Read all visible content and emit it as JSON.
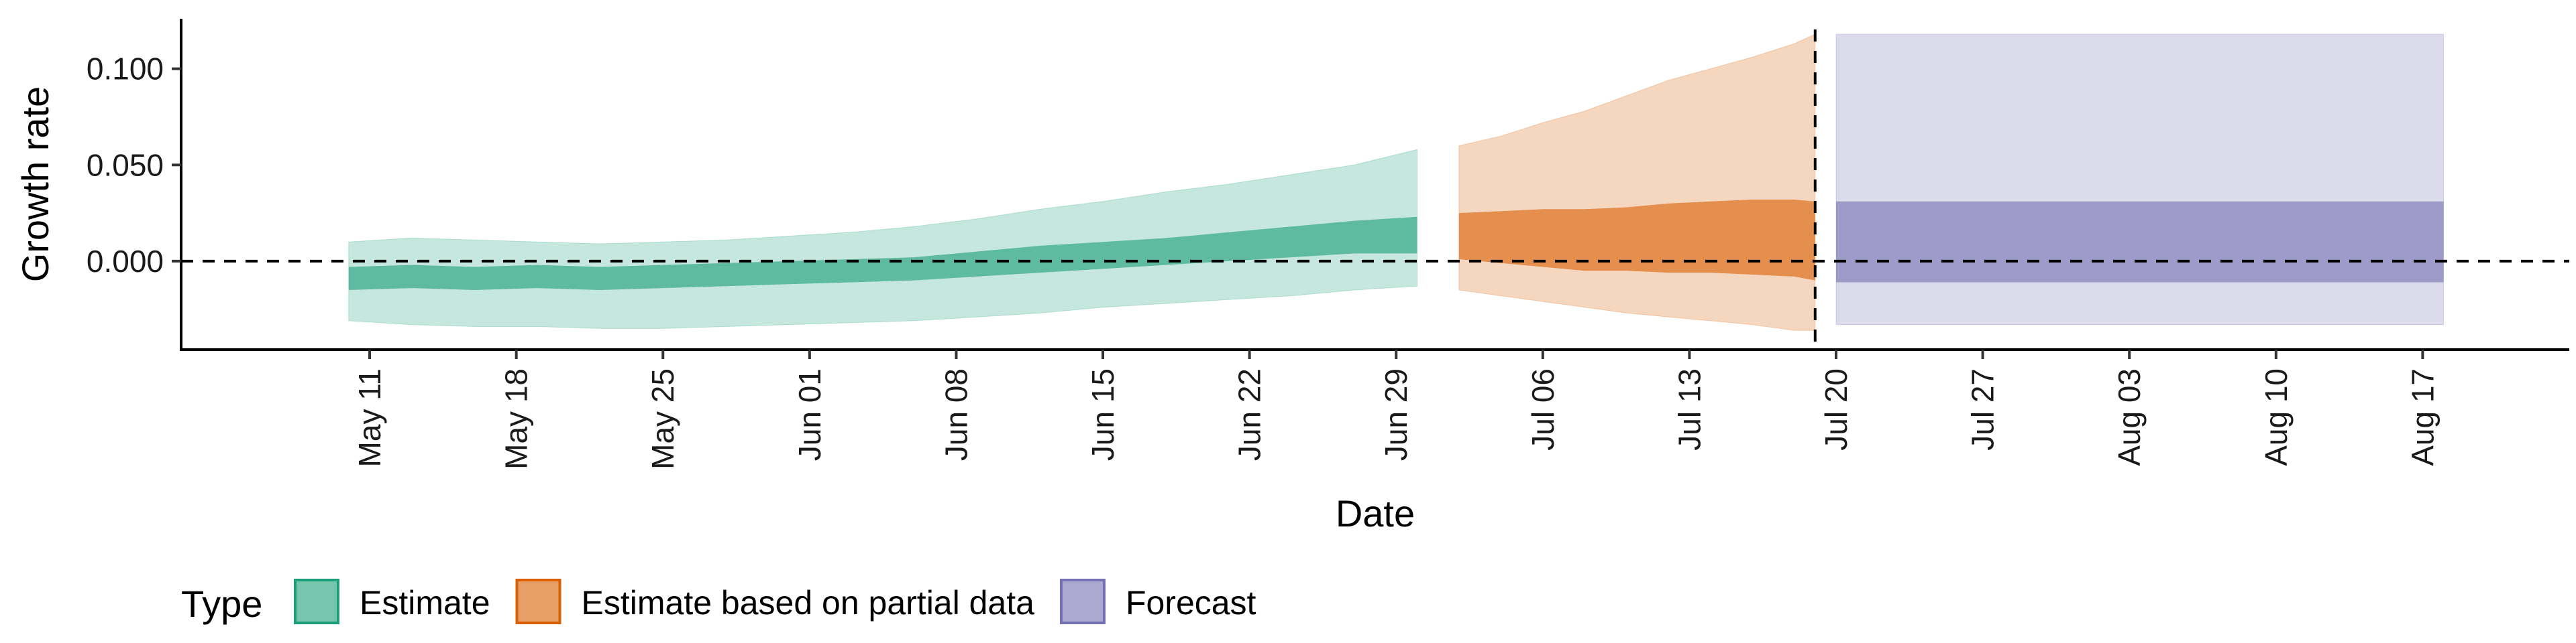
{
  "chart_data": {
    "type": "area",
    "xlabel": "Date",
    "ylabel": "Growth rate",
    "y_ticks": [
      "0.000",
      "0.050",
      "0.100"
    ],
    "ylim": [
      -0.046,
      0.126
    ],
    "xlim": [
      "2020-05-02",
      "2020-08-24"
    ],
    "x_ticks": [
      {
        "date": "2020-05-11",
        "label": "May 11"
      },
      {
        "date": "2020-05-18",
        "label": "May 18"
      },
      {
        "date": "2020-05-25",
        "label": "May 25"
      },
      {
        "date": "2020-06-01",
        "label": "Jun 01"
      },
      {
        "date": "2020-06-08",
        "label": "Jun 08"
      },
      {
        "date": "2020-06-15",
        "label": "Jun 15"
      },
      {
        "date": "2020-06-22",
        "label": "Jun 22"
      },
      {
        "date": "2020-06-29",
        "label": "Jun 29"
      },
      {
        "date": "2020-07-06",
        "label": "Jul 06"
      },
      {
        "date": "2020-07-13",
        "label": "Jul 13"
      },
      {
        "date": "2020-07-20",
        "label": "Jul 20"
      },
      {
        "date": "2020-07-27",
        "label": "Jul 27"
      },
      {
        "date": "2020-08-03",
        "label": "Aug 03"
      },
      {
        "date": "2020-08-10",
        "label": "Aug 10"
      },
      {
        "date": "2020-08-17",
        "label": "Aug 17"
      }
    ],
    "reference_lines": [
      {
        "orientation": "horizontal",
        "y": 0,
        "style": "dashed"
      },
      {
        "orientation": "vertical",
        "x": "2020-07-19",
        "style": "dashed"
      }
    ],
    "grid": false,
    "legend": {
      "title": "Type",
      "position": "bottom-left"
    },
    "series": [
      {
        "name": "Estimate",
        "color": "#1b9e77",
        "x": [
          "2020-05-10",
          "2020-05-13",
          "2020-05-16",
          "2020-05-19",
          "2020-05-22",
          "2020-05-25",
          "2020-05-28",
          "2020-05-31",
          "2020-06-03",
          "2020-06-06",
          "2020-06-09",
          "2020-06-12",
          "2020-06-15",
          "2020-06-18",
          "2020-06-21",
          "2020-06-24",
          "2020-06-27",
          "2020-06-30"
        ],
        "inner_lower": [
          -0.015,
          -0.014,
          -0.015,
          -0.014,
          -0.015,
          -0.014,
          -0.013,
          -0.012,
          -0.011,
          -0.01,
          -0.008,
          -0.006,
          -0.004,
          -0.002,
          0.0,
          0.002,
          0.004,
          0.004
        ],
        "inner_upper": [
          -0.003,
          -0.002,
          -0.003,
          -0.002,
          -0.003,
          -0.002,
          -0.001,
          0.0,
          0.001,
          0.002,
          0.005,
          0.008,
          0.01,
          0.012,
          0.015,
          0.018,
          0.021,
          0.023
        ],
        "outer_lower": [
          -0.031,
          -0.033,
          -0.034,
          -0.034,
          -0.035,
          -0.035,
          -0.034,
          -0.033,
          -0.032,
          -0.031,
          -0.029,
          -0.027,
          -0.024,
          -0.022,
          -0.02,
          -0.018,
          -0.015,
          -0.013
        ],
        "outer_upper": [
          0.01,
          0.012,
          0.011,
          0.01,
          0.009,
          0.01,
          0.011,
          0.013,
          0.015,
          0.018,
          0.022,
          0.027,
          0.031,
          0.036,
          0.04,
          0.045,
          0.05,
          0.058
        ]
      },
      {
        "name": "Estimate based on partial data",
        "color": "#d95f02",
        "x": [
          "2020-07-02",
          "2020-07-04",
          "2020-07-06",
          "2020-07-08",
          "2020-07-10",
          "2020-07-12",
          "2020-07-14",
          "2020-07-16",
          "2020-07-18",
          "2020-07-19"
        ],
        "inner_lower": [
          0.001,
          -0.001,
          -0.003,
          -0.005,
          -0.005,
          -0.006,
          -0.006,
          -0.007,
          -0.008,
          -0.01
        ],
        "inner_upper": [
          0.025,
          0.026,
          0.027,
          0.027,
          0.028,
          0.03,
          0.031,
          0.032,
          0.032,
          0.031
        ],
        "outer_lower": [
          -0.015,
          -0.018,
          -0.021,
          -0.024,
          -0.027,
          -0.029,
          -0.031,
          -0.033,
          -0.036,
          -0.036
        ],
        "outer_upper": [
          0.06,
          0.065,
          0.072,
          0.078,
          0.086,
          0.094,
          0.1,
          0.106,
          0.113,
          0.118
        ]
      },
      {
        "name": "Forecast",
        "color": "#7570b3",
        "x": [
          "2020-07-20",
          "2020-08-18"
        ],
        "inner_lower": [
          -0.011,
          -0.011
        ],
        "inner_upper": [
          0.031,
          0.031
        ],
        "outer_lower": [
          -0.033,
          -0.033
        ],
        "outer_upper": [
          0.118,
          0.118
        ]
      }
    ]
  }
}
